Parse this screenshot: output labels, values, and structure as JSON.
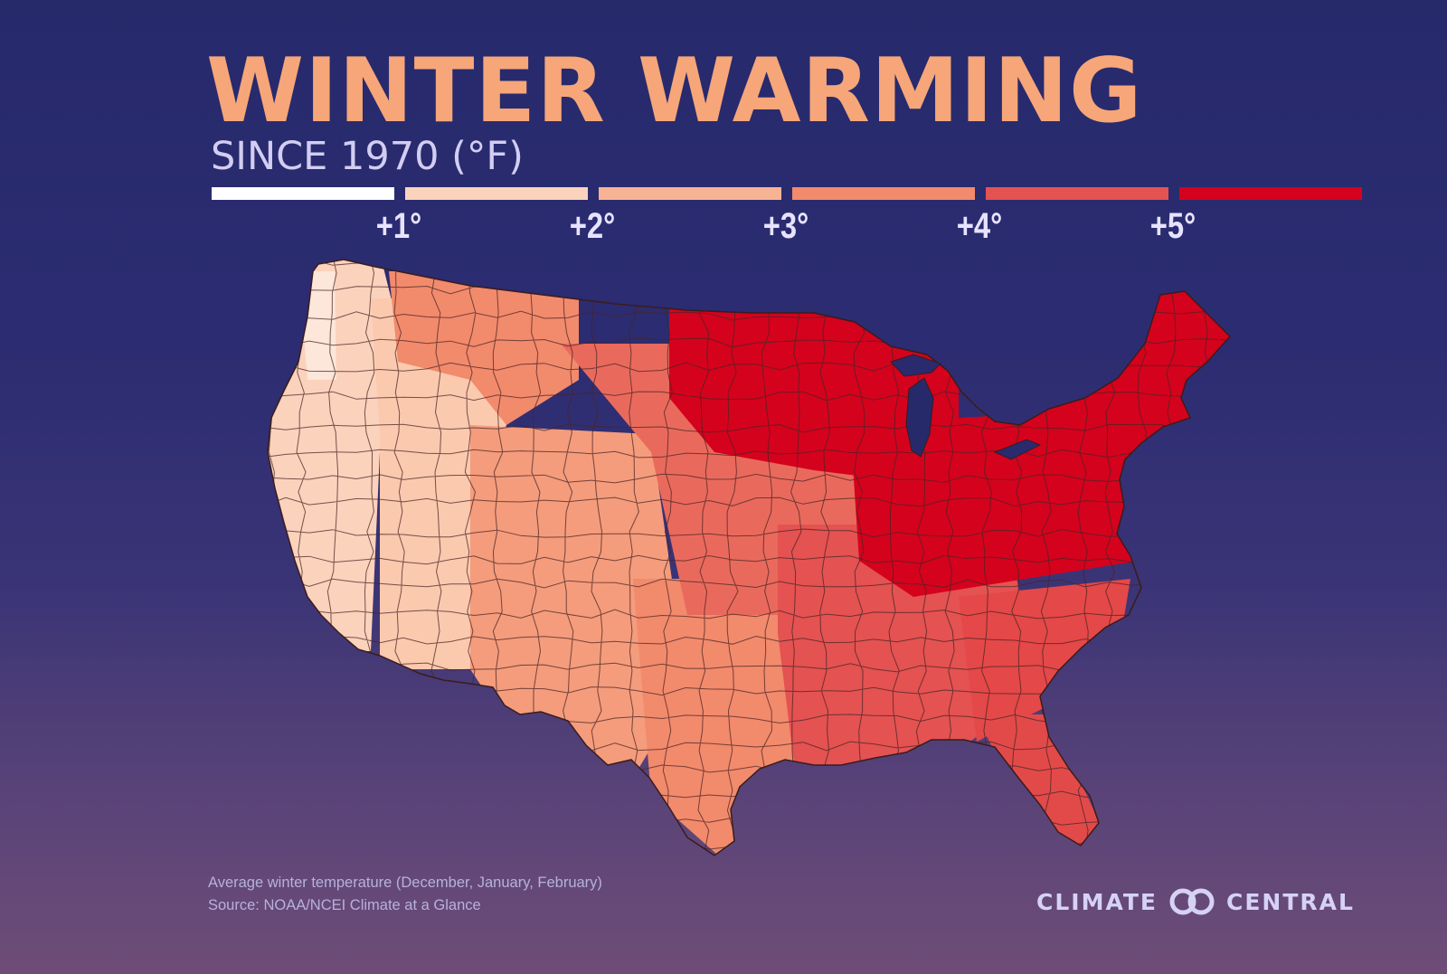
{
  "title": "WINTER WARMING",
  "subtitle": "SINCE 1970 (°F)",
  "legend": {
    "colors": [
      "#ffffff",
      "#fbd2bc",
      "#f7b394",
      "#f28a6c",
      "#e45252",
      "#d5021d"
    ],
    "labels": [
      "+1°",
      "+2°",
      "+3°",
      "+4°",
      "+5°"
    ]
  },
  "map": {
    "region_colors": {
      "west_coast": "#fbd2bc",
      "pacific_northwest": "#fde6da",
      "great_basin": "#fbc9ae",
      "northern_rockies": "#f28a6c",
      "southwest": "#f49c7c",
      "southern_plains": "#f28a6c",
      "central_plains": "#e96a5c",
      "south": "#e45252",
      "upper_midwest": "#d5021d",
      "ohio_valley": "#d5021d",
      "northeast": "#d5021d",
      "southeast": "#e44848",
      "florida": "#e24a4a"
    },
    "border_color": "#4a2424"
  },
  "footnote": {
    "line1": "Average winter temperature (December, January, February)",
    "line2": "Source: NOAA/NCEI Climate at a Glance"
  },
  "brand": {
    "left": "CLIMATE",
    "right": "CENTRAL",
    "icon": "climate-central-logo-icon"
  }
}
